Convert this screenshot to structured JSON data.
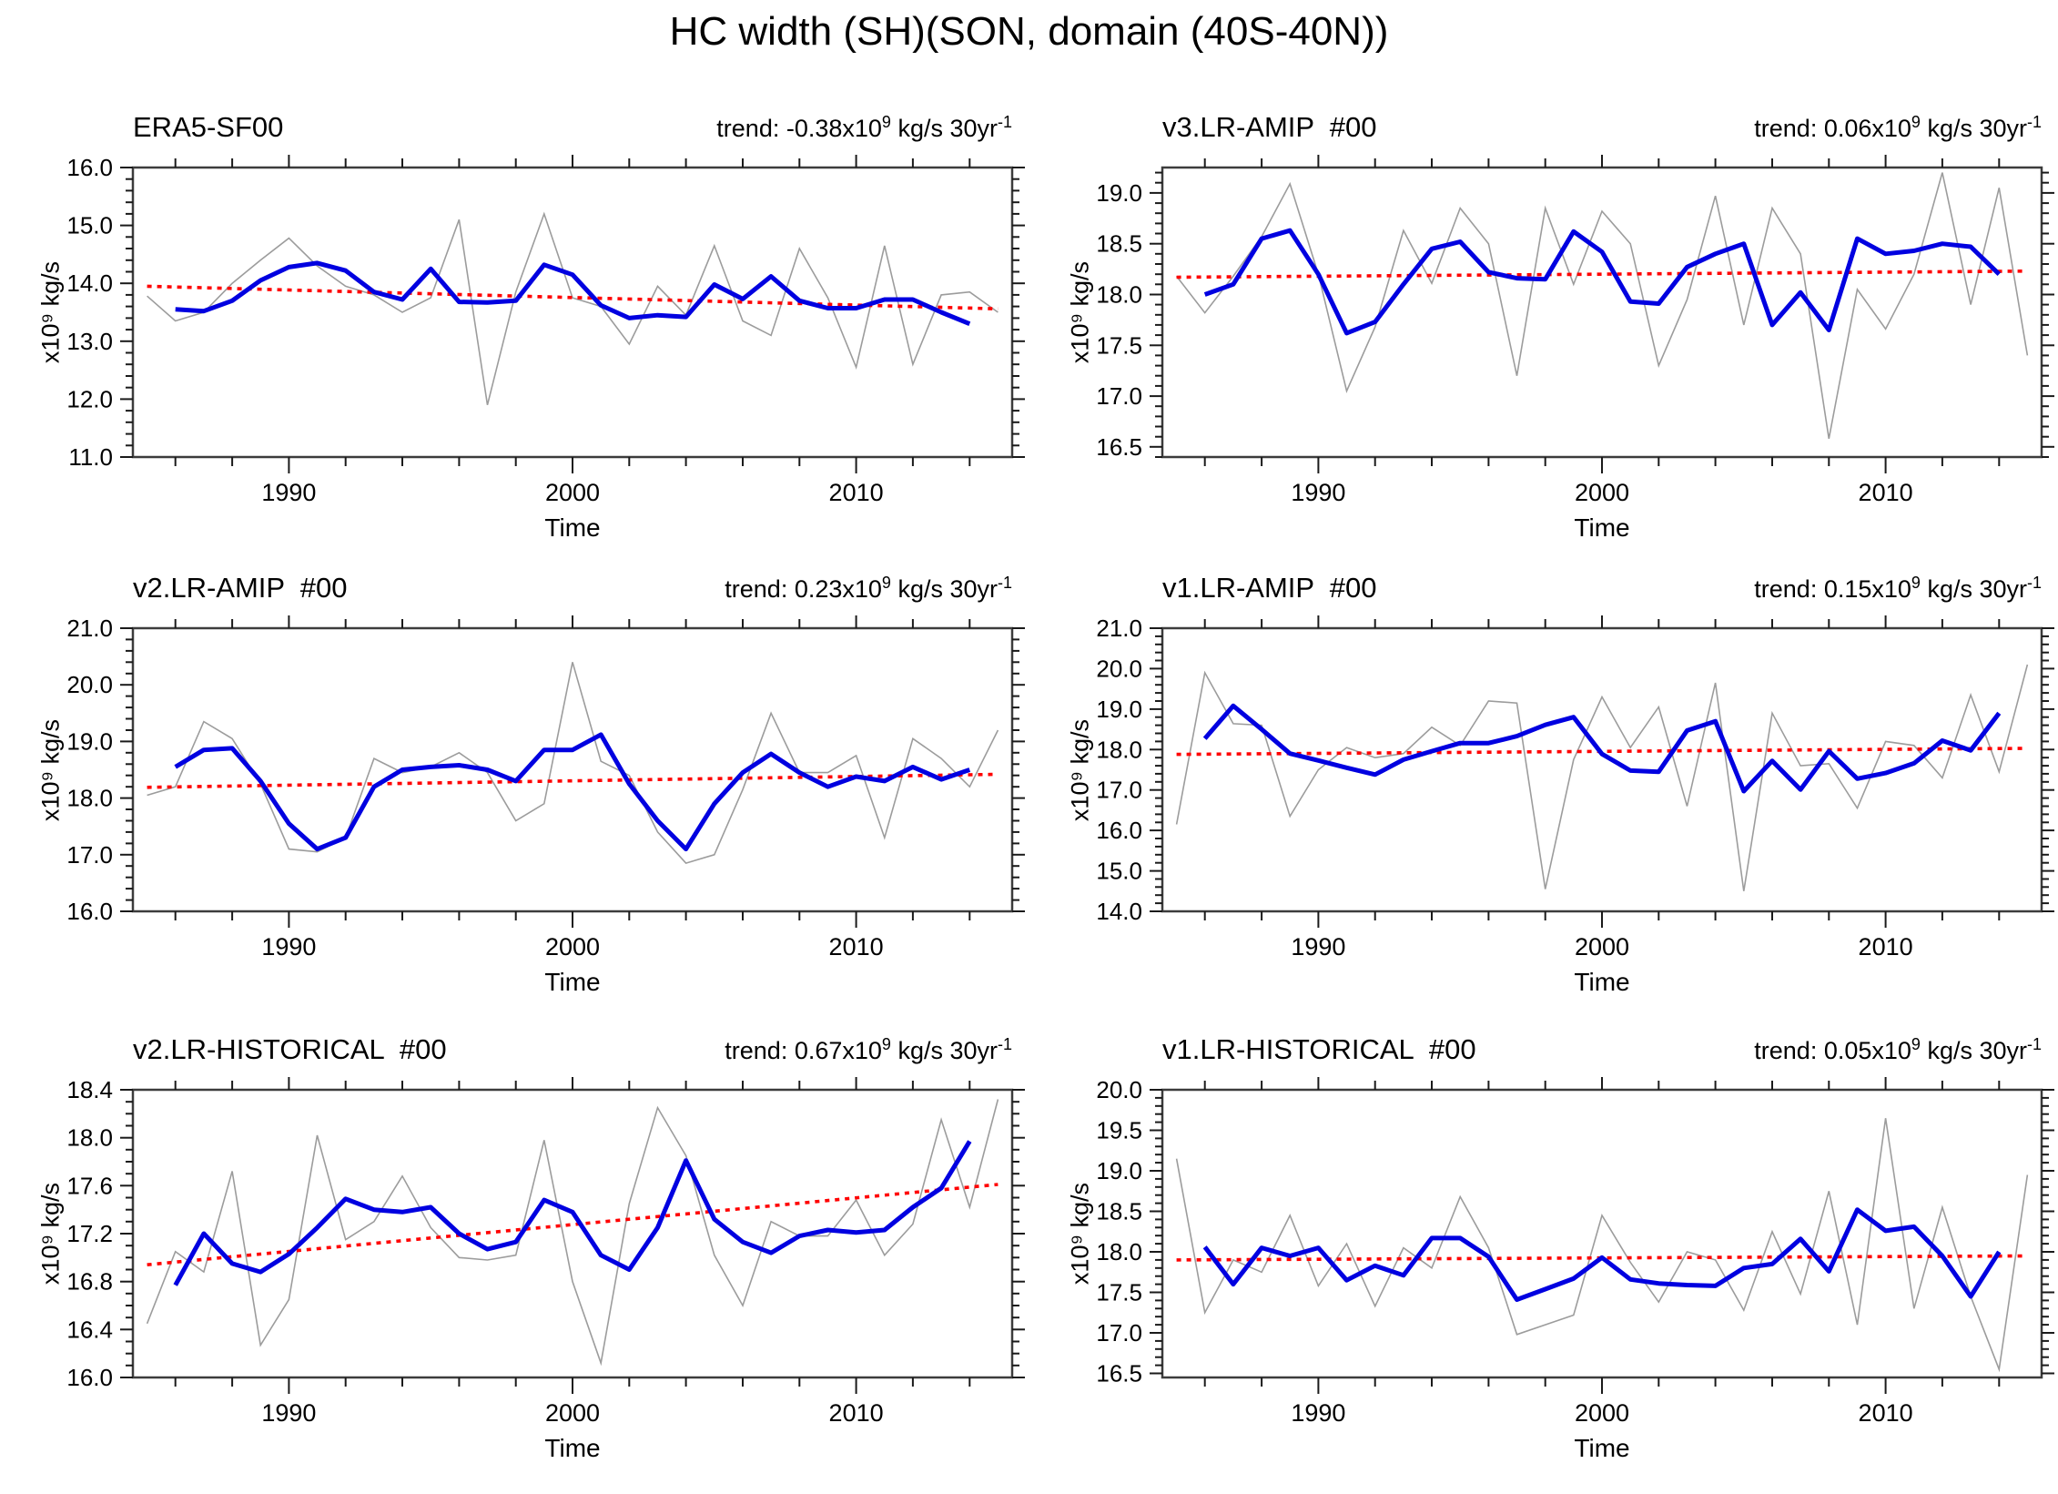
{
  "page_title": "HC width (SH)(SON, domain (40S-40N))",
  "axis": {
    "xlabel": "Time",
    "ylabel": "x10⁹ kg/s",
    "x_range": [
      1984.5,
      2015.5
    ],
    "x_major_ticks": [
      1990,
      2000,
      2010
    ],
    "x_minor_step_years": 2
  },
  "trend_suffix": {
    "exp": "9",
    "mid": " kg/s 30yr",
    "exp2": "-1"
  },
  "colors": {
    "raw_line": "#9c9c9c",
    "smoothed_line": "#0000e0",
    "trend_line": "#ff0000",
    "frame": "#3c3c3c"
  },
  "chart_data": [
    {
      "type": "line",
      "title": "ERA5-SF00",
      "trend_prefix": "trend: -0.38x10",
      "trend_per_30yr": -0.38,
      "ylim": [
        11.0,
        16.0
      ],
      "y_major_step": 1.0,
      "y_minor_step": 0.2,
      "series": [
        {
          "name": "annual",
          "start_year": 1985,
          "values": [
            13.78,
            13.35,
            13.5,
            14.0,
            14.4,
            14.78,
            14.3,
            13.95,
            13.8,
            13.5,
            13.75,
            15.1,
            11.9,
            13.85,
            15.2,
            13.75,
            13.6,
            12.95,
            13.95,
            13.45,
            14.65,
            13.35,
            13.1,
            14.6,
            13.75,
            12.55,
            14.65,
            12.6,
            13.8,
            13.85,
            13.5
          ]
        },
        {
          "name": "smoothed",
          "start_year": 1986,
          "values": [
            13.55,
            13.52,
            13.7,
            14.05,
            14.28,
            14.35,
            14.22,
            13.85,
            13.72,
            14.25,
            13.68,
            13.67,
            13.7,
            14.32,
            14.15,
            13.62,
            13.4,
            13.45,
            13.42,
            13.98,
            13.73,
            14.12,
            13.7,
            13.57,
            13.57,
            13.72,
            13.72,
            13.5,
            13.3
          ]
        },
        {
          "name": "trend",
          "x": [
            1985,
            2015
          ],
          "y": [
            13.95,
            13.56
          ]
        }
      ]
    },
    {
      "type": "line",
      "title": "v3.LR-AMIP  #00",
      "trend_prefix": "trend: 0.06x10",
      "trend_per_30yr": 0.06,
      "ylim": [
        16.4,
        19.25
      ],
      "y_major_step": 0.5,
      "y_minor_step": 0.1,
      "series": [
        {
          "name": "annual",
          "start_year": 1985,
          "values": [
            18.18,
            17.82,
            18.18,
            18.57,
            19.09,
            18.2,
            17.05,
            17.68,
            18.63,
            18.11,
            18.85,
            18.5,
            17.2,
            18.85,
            18.1,
            18.82,
            18.5,
            17.3,
            17.95,
            18.97,
            17.7,
            18.85,
            18.4,
            16.58,
            18.05,
            17.66,
            18.2,
            19.2,
            17.9,
            19.05,
            17.4
          ]
        },
        {
          "name": "smoothed",
          "start_year": 1986,
          "values": [
            18.0,
            18.1,
            18.55,
            18.63,
            18.2,
            17.62,
            17.73,
            18.1,
            18.45,
            18.52,
            18.22,
            18.16,
            18.15,
            18.62,
            18.42,
            17.93,
            17.91,
            18.27,
            18.4,
            18.5,
            17.7,
            18.02,
            17.65,
            18.55,
            18.4,
            18.43,
            18.5,
            18.47,
            18.2
          ]
        },
        {
          "name": "trend",
          "x": [
            1985,
            2015
          ],
          "y": [
            18.17,
            18.23
          ]
        }
      ]
    },
    {
      "type": "line",
      "title": "v2.LR-AMIP  #00",
      "trend_prefix": "trend: 0.23x10",
      "trend_per_30yr": 0.23,
      "ylim": [
        16.0,
        21.0
      ],
      "y_major_step": 1.0,
      "y_minor_step": 0.2,
      "series": [
        {
          "name": "annual",
          "start_year": 1985,
          "values": [
            18.05,
            18.2,
            19.35,
            19.05,
            18.25,
            17.1,
            17.05,
            17.3,
            18.7,
            18.45,
            18.55,
            18.8,
            18.45,
            17.6,
            17.9,
            20.4,
            18.65,
            18.4,
            17.4,
            16.85,
            17.0,
            18.15,
            19.5,
            18.45,
            18.45,
            18.75,
            17.3,
            19.05,
            18.7,
            18.2,
            19.2
          ]
        },
        {
          "name": "smoothed",
          "start_year": 1986,
          "values": [
            18.55,
            18.85,
            18.88,
            18.3,
            17.55,
            17.1,
            17.3,
            18.2,
            18.5,
            18.55,
            18.58,
            18.5,
            18.3,
            18.85,
            18.85,
            19.12,
            18.25,
            17.6,
            17.1,
            17.9,
            18.45,
            18.78,
            18.45,
            18.2,
            18.38,
            18.3,
            18.55,
            18.33,
            18.5
          ]
        },
        {
          "name": "trend",
          "x": [
            1985,
            2015
          ],
          "y": [
            18.19,
            18.42
          ]
        }
      ]
    },
    {
      "type": "line",
      "title": "v1.LR-AMIP  #00",
      "trend_prefix": "trend: 0.15x10",
      "trend_per_30yr": 0.15,
      "ylim": [
        14.0,
        21.0
      ],
      "y_major_step": 1.0,
      "y_minor_step": 0.2,
      "series": [
        {
          "name": "annual",
          "start_year": 1985,
          "values": [
            16.15,
            19.9,
            18.64,
            18.6,
            16.35,
            17.5,
            18.05,
            17.8,
            17.9,
            18.55,
            18.1,
            19.2,
            19.15,
            14.55,
            17.75,
            19.3,
            18.05,
            19.05,
            16.6,
            19.65,
            14.5,
            18.9,
            17.6,
            17.65,
            16.55,
            18.2,
            18.1,
            17.3,
            19.35,
            17.45,
            20.1
          ]
        },
        {
          "name": "smoothed",
          "start_year": 1986,
          "values": [
            18.27,
            19.08,
            18.5,
            17.9,
            17.73,
            17.55,
            17.38,
            17.75,
            17.96,
            18.16,
            18.16,
            18.33,
            18.61,
            18.8,
            17.89,
            17.48,
            17.45,
            18.47,
            18.7,
            16.97,
            17.72,
            17.01,
            17.96,
            17.28,
            17.42,
            17.66,
            18.22,
            17.98,
            18.9
          ]
        },
        {
          "name": "trend",
          "x": [
            1985,
            2015
          ],
          "y": [
            17.88,
            18.03
          ]
        }
      ]
    },
    {
      "type": "line",
      "title": "v2.LR-HISTORICAL  #00",
      "trend_prefix": "trend: 0.67x10",
      "trend_per_30yr": 0.67,
      "ylim": [
        16.0,
        18.4
      ],
      "y_major_step": 0.4,
      "y_minor_step": 0.1,
      "series": [
        {
          "name": "annual",
          "start_year": 1985,
          "values": [
            16.45,
            17.05,
            16.88,
            17.72,
            16.27,
            16.65,
            18.02,
            17.15,
            17.3,
            17.68,
            17.25,
            17.0,
            16.98,
            17.02,
            17.98,
            16.8,
            16.12,
            17.45,
            18.25,
            17.85,
            17.02,
            16.6,
            17.3,
            17.18,
            17.18,
            17.48,
            17.02,
            17.28,
            18.15,
            17.42,
            18.32
          ]
        },
        {
          "name": "smoothed",
          "start_year": 1986,
          "values": [
            16.77,
            17.2,
            16.95,
            16.88,
            17.03,
            17.25,
            17.49,
            17.4,
            17.38,
            17.42,
            17.2,
            17.07,
            17.13,
            17.48,
            17.38,
            17.02,
            16.9,
            17.25,
            17.81,
            17.32,
            17.13,
            17.04,
            17.18,
            17.23,
            17.21,
            17.23,
            17.42,
            17.58,
            17.97
          ]
        },
        {
          "name": "trend",
          "x": [
            1985,
            2015
          ],
          "y": [
            16.94,
            17.61
          ]
        }
      ]
    },
    {
      "type": "line",
      "title": "v1.LR-HISTORICAL  #00",
      "trend_prefix": "trend: 0.05x10",
      "trend_per_30yr": 0.05,
      "ylim": [
        16.45,
        20.0
      ],
      "y_major_step": 0.5,
      "y_minor_step": 0.1,
      "series": [
        {
          "name": "annual",
          "start_year": 1985,
          "values": [
            19.15,
            17.25,
            17.9,
            17.75,
            18.45,
            17.58,
            18.1,
            17.33,
            18.05,
            17.8,
            18.68,
            18.05,
            16.98,
            17.1,
            17.22,
            18.45,
            17.87,
            17.38,
            18.0,
            17.9,
            17.28,
            18.25,
            17.48,
            18.75,
            17.1,
            19.65,
            17.3,
            18.55,
            17.45,
            16.55,
            18.95
          ]
        },
        {
          "name": "smoothed",
          "start_year": 1986,
          "values": [
            18.06,
            17.6,
            18.05,
            17.95,
            18.05,
            17.65,
            17.83,
            17.71,
            18.17,
            18.17,
            17.94,
            17.41,
            17.54,
            17.67,
            17.93,
            17.66,
            17.61,
            17.59,
            17.58,
            17.8,
            17.85,
            18.16,
            17.76,
            18.52,
            18.26,
            18.31,
            17.95,
            17.45,
            18.0
          ]
        },
        {
          "name": "trend",
          "x": [
            1985,
            2015
          ],
          "y": [
            17.9,
            17.95
          ]
        }
      ]
    }
  ]
}
